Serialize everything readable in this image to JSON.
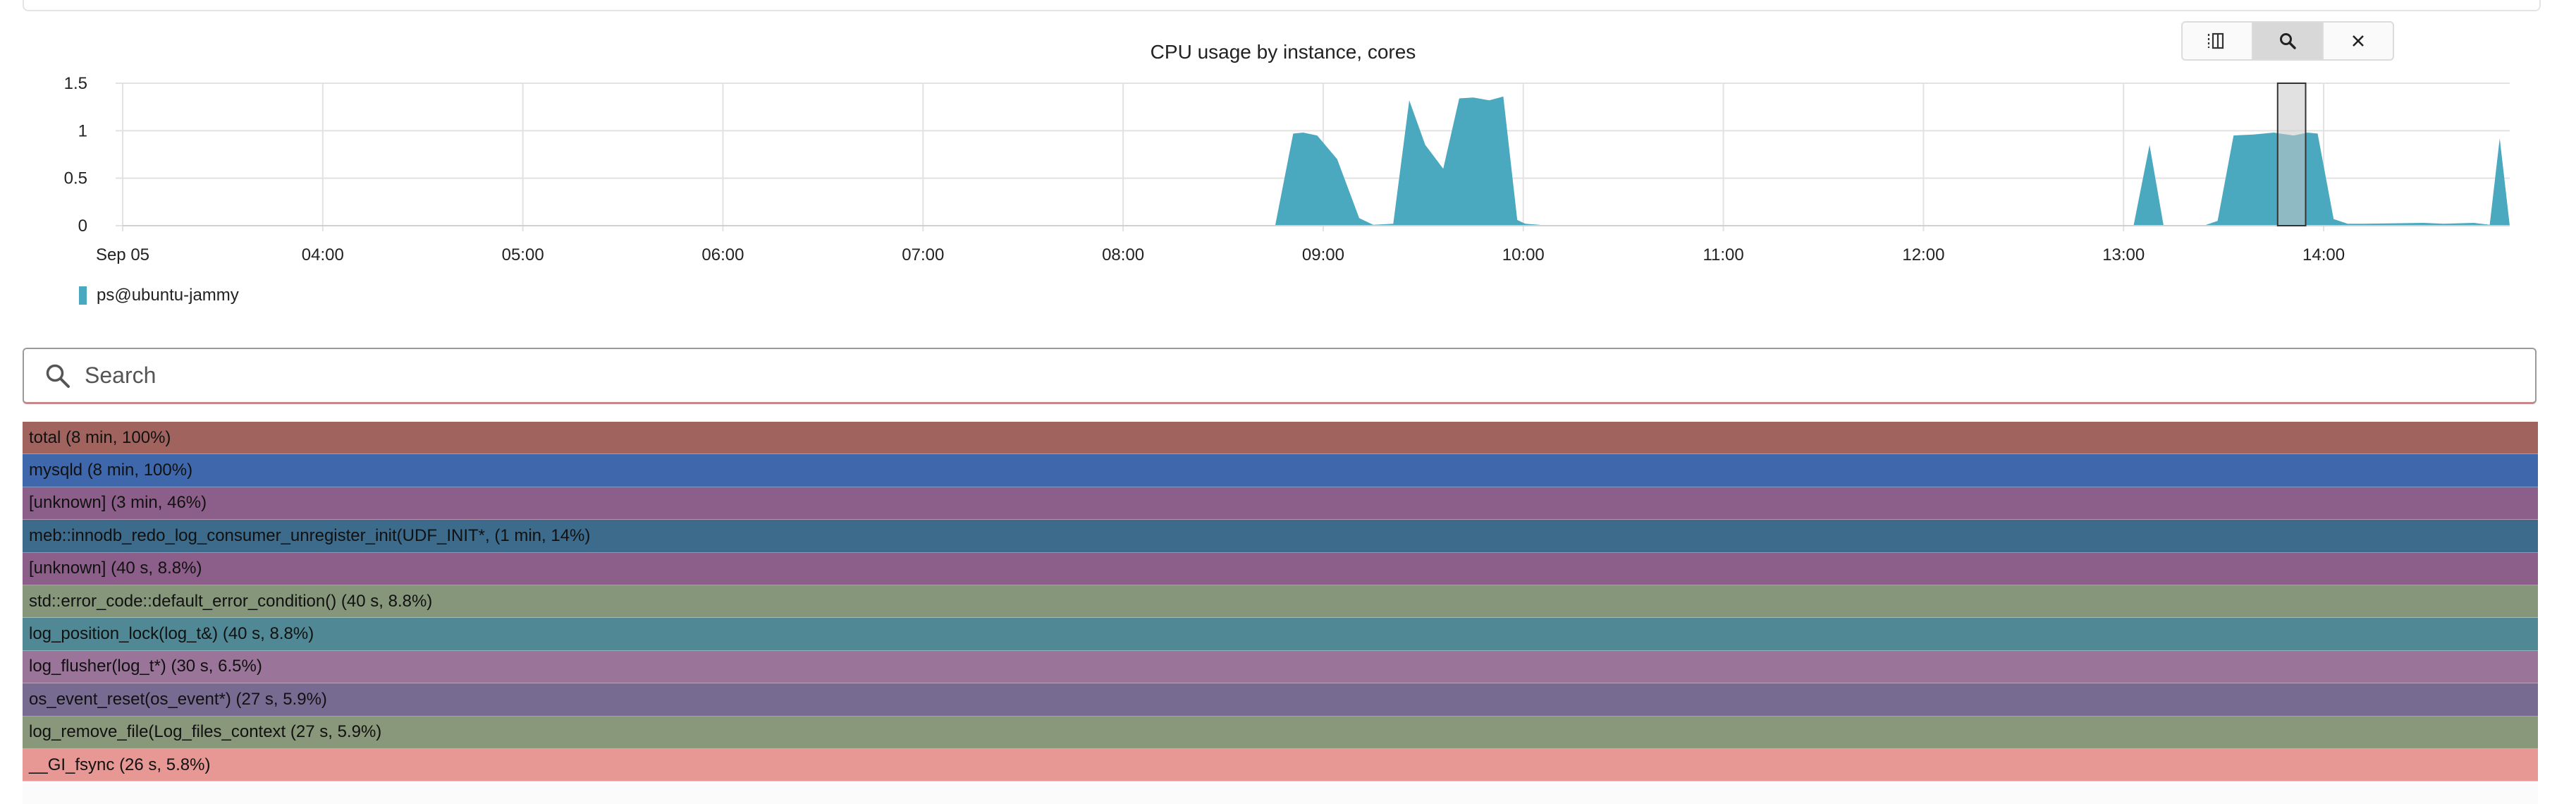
{
  "chart_data": {
    "type": "area",
    "title": "CPU usage by instance, cores",
    "xlabel": "",
    "ylabel": "",
    "y_ticks": [
      "0",
      "0.5",
      "1",
      "1.5"
    ],
    "ylim": [
      0,
      1.5
    ],
    "x_tick_labels": [
      "Sep 05",
      "04:00",
      "05:00",
      "06:00",
      "07:00",
      "08:00",
      "09:00",
      "10:00",
      "11:00",
      "12:00",
      "13:00",
      "14:00"
    ],
    "x_tick_hours": [
      3,
      4,
      5,
      6,
      7,
      8,
      9,
      10,
      11,
      12,
      13,
      14
    ],
    "xlim_hours": [
      3.0,
      14.93
    ],
    "grid": true,
    "legend_position": "bottom-left",
    "selection_hours": [
      13.77,
      13.91
    ],
    "series": [
      {
        "name": "ps@ubuntu-jammy",
        "color": "#4aa8bf",
        "x_hours": [
          3.0,
          8.76,
          8.85,
          8.9,
          8.97,
          9.07,
          9.18,
          9.25,
          9.35,
          9.43,
          9.51,
          9.6,
          9.68,
          9.75,
          9.83,
          9.9,
          9.97,
          10.01,
          10.08,
          10.1,
          12.75,
          13.05,
          13.13,
          13.2,
          13.4,
          13.47,
          13.55,
          13.65,
          13.75,
          13.85,
          13.92,
          13.97,
          14.05,
          14.12,
          14.2,
          14.5,
          14.6,
          14.75,
          14.83,
          14.88,
          14.93
        ],
        "values": [
          0,
          0,
          0.97,
          0.98,
          0.95,
          0.7,
          0.08,
          0.01,
          0.02,
          1.32,
          0.85,
          0.6,
          1.34,
          1.35,
          1.32,
          1.36,
          0.06,
          0.02,
          0.01,
          0,
          0,
          0,
          0.85,
          0,
          0,
          0.05,
          0.95,
          0.96,
          0.98,
          0.95,
          0.98,
          0.97,
          0.07,
          0.02,
          0.02,
          0.03,
          0.02,
          0.03,
          0.01,
          0.92,
          0
        ]
      }
    ]
  },
  "toolbar": {
    "buttons": [
      {
        "icon": "split-view-icon",
        "active": false
      },
      {
        "icon": "search-icon",
        "active": true
      },
      {
        "icon": "close-icon",
        "active": false
      }
    ]
  },
  "search": {
    "placeholder": "Search",
    "value": ""
  },
  "flamegraph": {
    "rows": [
      {
        "label": "total (8 min, 100%)",
        "color": "#a0635e"
      },
      {
        "label": "mysqld (8 min, 100%)",
        "color": "#3f67ab"
      },
      {
        "label": "[unknown] (3 min, 46%)",
        "color": "#8c5f8a"
      },
      {
        "label": "meb::innodb_redo_log_consumer_unregister_init(UDF_INIT*, (1 min, 14%)",
        "color": "#3d6b8c"
      },
      {
        "label": "[unknown] (40 s, 8.8%)",
        "color": "#8c5f8a"
      },
      {
        "label": "std::error_code::default_error_condition() (40 s, 8.8%)",
        "color": "#86967a"
      },
      {
        "label": "log_position_lock(log_t&) (40 s, 8.8%)",
        "color": "#508995"
      },
      {
        "label": "log_flusher(log_t*) (30 s, 6.5%)",
        "color": "#9a7499"
      },
      {
        "label": "os_event_reset(os_event*) (27 s, 5.9%)",
        "color": "#786b92"
      },
      {
        "label": "log_remove_file(Log_files_context (27 s, 5.9%)",
        "color": "#89977a"
      },
      {
        "label": "__GI_fsync (26 s, 5.8%)",
        "color": "#e79794"
      }
    ]
  }
}
